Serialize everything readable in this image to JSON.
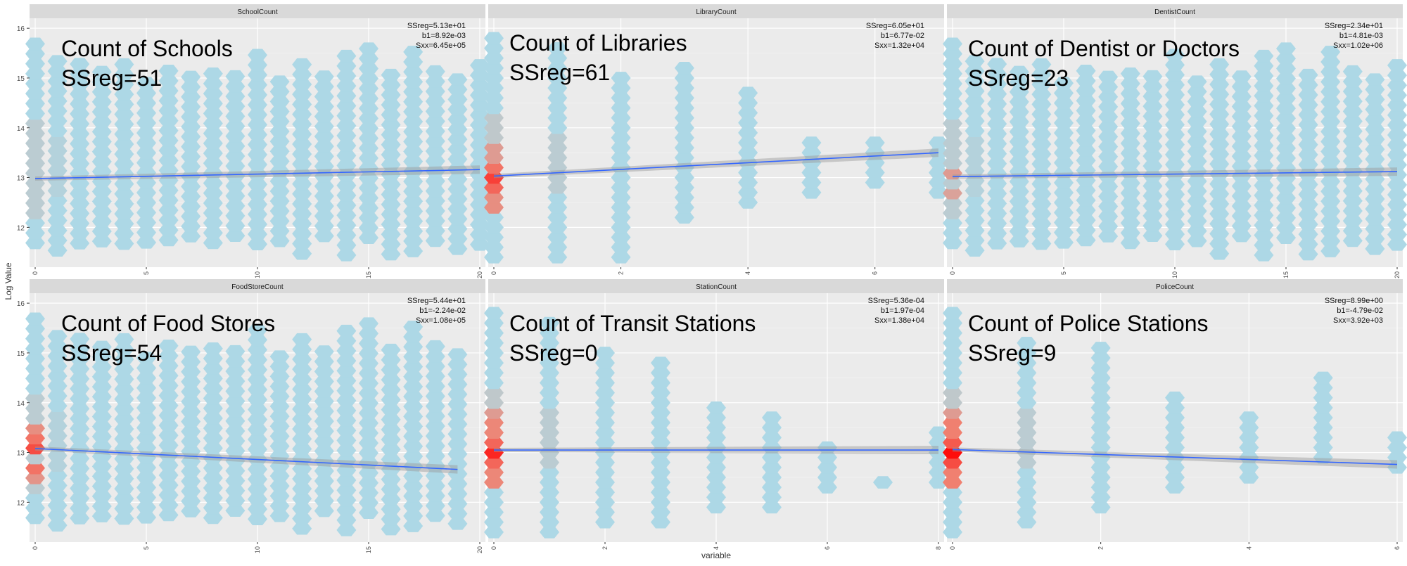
{
  "figure": {
    "xlabel": "variable",
    "ylabel": "Log Value"
  },
  "colors": {
    "panel_bg": "#ebebeb",
    "strip_bg": "#d9d9d9",
    "hex_low": "#add8e6",
    "hex_mid": "#c4c4c4",
    "hex_high": "#ff0000",
    "line": "#3366ff"
  },
  "chart_data": [
    {
      "type": "hexbin",
      "strip": "SchoolCount",
      "annotation": "Count of Schools",
      "ssreg_label": "SSreg=51",
      "stats": [
        "SSreg=5.13e+01",
        "b1=8.92e-03",
        "Sxx=6.45e+05"
      ],
      "xlim": [
        0,
        20
      ],
      "xticks": [
        0,
        5,
        10,
        15,
        20
      ],
      "ylim": [
        11.2,
        16.2
      ],
      "yticks": [
        12,
        13,
        14,
        15,
        16
      ],
      "xcols": [
        0,
        1,
        2,
        3,
        4,
        5,
        6,
        7,
        8,
        9,
        10,
        11,
        12,
        13,
        14,
        15,
        16,
        17,
        18,
        19,
        20
      ],
      "ymin": 11.4,
      "ymax": 15.6,
      "regression": {
        "x": [
          0,
          20
        ],
        "y": [
          12.98,
          13.16
        ]
      }
    },
    {
      "type": "hexbin",
      "strip": "LibraryCount",
      "annotation": "Count of Libraries",
      "ssreg_label": "SSreg=61",
      "stats": [
        "SSreg=6.05e+01",
        "b1=6.77e-02",
        "Sxx=1.32e+04"
      ],
      "xlim": [
        0,
        7
      ],
      "xticks": [
        0,
        2,
        4,
        6
      ],
      "ylim": [
        11.2,
        16.2
      ],
      "yticks": [
        12,
        13,
        14,
        15,
        16
      ],
      "xcols": [
        0,
        1,
        2,
        3,
        4,
        5,
        6,
        7
      ],
      "colranges": [
        [
          11.4,
          15.8
        ],
        [
          11.4,
          15.6
        ],
        [
          11.4,
          15.1
        ],
        [
          12.2,
          15.3
        ],
        [
          12.5,
          14.7
        ],
        [
          12.7,
          13.8
        ],
        [
          12.9,
          13.7
        ],
        [
          12.7,
          13.7
        ]
      ],
      "hot": [
        {
          "x": 0,
          "y": 13.0,
          "level": 0.75
        },
        {
          "x": 0,
          "y": 12.75,
          "level": 0.6
        },
        {
          "x": 0,
          "y": 13.25,
          "level": 0.55
        },
        {
          "x": 0,
          "y": 12.5,
          "level": 0.4
        },
        {
          "x": 0,
          "y": 13.5,
          "level": 0.3
        }
      ],
      "regression": {
        "x": [
          0,
          7
        ],
        "y": [
          13.03,
          13.5
        ]
      }
    },
    {
      "type": "hexbin",
      "strip": "DentistCount",
      "annotation": "Count of Dentist or Doctors",
      "ssreg_label": "SSreg=23",
      "stats": [
        "SSreg=2.34e+01",
        "b1=4.81e-03",
        "Sxx=1.02e+06"
      ],
      "xlim": [
        0,
        20
      ],
      "xticks": [
        0,
        5,
        10,
        15,
        20
      ],
      "ylim": [
        11.2,
        16.2
      ],
      "yticks": [
        12,
        13,
        14,
        15,
        16
      ],
      "xcols": [
        0,
        1,
        2,
        3,
        4,
        5,
        6,
        7,
        8,
        9,
        10,
        11,
        12,
        13,
        14,
        15,
        16,
        17,
        18,
        19,
        20
      ],
      "ymin": 11.4,
      "ymax": 15.6,
      "hot": [
        {
          "x": 0,
          "y": 13.0,
          "level": 0.3
        },
        {
          "x": 0,
          "y": 12.75,
          "level": 0.25
        }
      ],
      "regression": {
        "x": [
          0,
          20
        ],
        "y": [
          13.02,
          13.12
        ]
      }
    },
    {
      "type": "hexbin",
      "strip": "FoodStoreCount",
      "annotation": "Count of Food Stores",
      "ssreg_label": "SSreg=54",
      "stats": [
        "SSreg=5.44e+01",
        "b1=-2.24e-02",
        "Sxx=1.08e+05"
      ],
      "xlim": [
        0,
        20
      ],
      "xticks": [
        0,
        5,
        10,
        15,
        20
      ],
      "ylim": [
        11.2,
        16.2
      ],
      "yticks": [
        12,
        13,
        14,
        15,
        16
      ],
      "xcols": [
        0,
        1,
        2,
        3,
        4,
        5,
        6,
        7,
        8,
        9,
        10,
        11,
        12,
        13,
        14,
        15,
        16,
        17,
        18,
        19
      ],
      "ymin": 11.4,
      "ymax": 15.6,
      "hot": [
        {
          "x": 0,
          "y": 13.0,
          "level": 0.7
        },
        {
          "x": 0,
          "y": 12.75,
          "level": 0.55
        },
        {
          "x": 0,
          "y": 13.25,
          "level": 0.55
        },
        {
          "x": 0,
          "y": 13.5,
          "level": 0.4
        },
        {
          "x": 0,
          "y": 12.5,
          "level": 0.35
        }
      ],
      "regression": {
        "x": [
          0,
          19
        ],
        "y": [
          13.08,
          12.66
        ]
      }
    },
    {
      "type": "hexbin",
      "strip": "StationCount",
      "annotation": "Count of Transit Stations",
      "ssreg_label": "SSreg=0",
      "stats": [
        "SSreg=5.36e-04",
        "b1=1.97e-04",
        "Sxx=1.38e+04"
      ],
      "xlim": [
        0,
        8
      ],
      "xticks": [
        0,
        2,
        4,
        6,
        8
      ],
      "ylim": [
        11.2,
        16.2
      ],
      "yticks": [
        12,
        13,
        14,
        15,
        16
      ],
      "xcols": [
        0,
        1,
        2,
        3,
        4,
        5,
        6,
        7,
        8
      ],
      "colranges": [
        [
          11.4,
          15.9
        ],
        [
          11.4,
          15.6
        ],
        [
          11.6,
          15.1
        ],
        [
          11.6,
          14.9
        ],
        [
          11.9,
          14.0
        ],
        [
          11.9,
          13.8
        ],
        [
          12.3,
          13.1
        ],
        [
          12.4,
          12.4
        ],
        [
          12.4,
          13.4
        ]
      ],
      "hot": [
        {
          "x": 0,
          "y": 13.0,
          "level": 0.85
        },
        {
          "x": 0,
          "y": 12.75,
          "level": 0.6
        },
        {
          "x": 0,
          "y": 13.25,
          "level": 0.6
        },
        {
          "x": 0,
          "y": 12.5,
          "level": 0.45
        },
        {
          "x": 0,
          "y": 13.5,
          "level": 0.45
        },
        {
          "x": 0,
          "y": 13.75,
          "level": 0.3
        }
      ],
      "regression": {
        "x": [
          0,
          8
        ],
        "y": [
          13.05,
          13.05
        ]
      }
    },
    {
      "type": "hexbin",
      "strip": "PoliceCount",
      "annotation": "Count of Police Stations",
      "ssreg_label": "SSreg=9",
      "stats": [
        "SSreg=8.99e+00",
        "b1=-4.79e-02",
        "Sxx=3.92e+03"
      ],
      "xlim": [
        0,
        6
      ],
      "xticks": [
        0,
        2,
        4,
        6
      ],
      "ylim": [
        11.2,
        16.2
      ],
      "yticks": [
        12,
        13,
        14,
        15,
        16
      ],
      "xcols": [
        0,
        1,
        2,
        3,
        4,
        5,
        6
      ],
      "colranges": [
        [
          11.4,
          15.9
        ],
        [
          11.6,
          15.3
        ],
        [
          11.9,
          15.1
        ],
        [
          12.3,
          14.1
        ],
        [
          12.5,
          13.8
        ],
        [
          12.9,
          14.6
        ],
        [
          12.7,
          13.4
        ]
      ],
      "hot": [
        {
          "x": 0,
          "y": 13.0,
          "level": 0.95
        },
        {
          "x": 0,
          "y": 12.75,
          "level": 0.7
        },
        {
          "x": 0,
          "y": 13.25,
          "level": 0.65
        },
        {
          "x": 0,
          "y": 12.5,
          "level": 0.5
        },
        {
          "x": 0,
          "y": 13.5,
          "level": 0.5
        },
        {
          "x": 0,
          "y": 13.75,
          "level": 0.3
        }
      ],
      "regression": {
        "x": [
          0,
          6
        ],
        "y": [
          13.06,
          12.76
        ]
      }
    }
  ]
}
